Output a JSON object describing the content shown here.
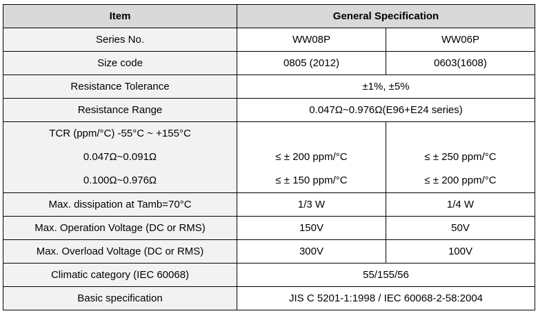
{
  "header": {
    "item": "Item",
    "general": "General Specification"
  },
  "rows": {
    "series_no": {
      "label": "Series No.",
      "a": "WW08P",
      "b": "WW06P"
    },
    "size_code": {
      "label": "Size code",
      "a": "0805 (2012)",
      "b": "0603(1608)"
    },
    "resistance_tolerance": {
      "label": "Resistance Tolerance",
      "value": "±1%, ±5%"
    },
    "resistance_range": {
      "label": "Resistance Range",
      "value": "0.047Ω~0.976Ω(E96+E24 series)"
    },
    "tcr": {
      "label": "TCR (ppm/°C) -55°C ~ +155°C",
      "range1": "0.047Ω~0.091Ω",
      "range2": "0.100Ω~0.976Ω",
      "a1": "≤ ± 200 ppm/°C",
      "a2": "≤ ± 150 ppm/°C",
      "b1": "≤ ± 250 ppm/°C",
      "b2": "≤ ± 200 ppm/°C"
    },
    "max_dissipation": {
      "label": "Max. dissipation at Tamb=70°C",
      "a": "1/3 W",
      "b": "1/4 W"
    },
    "max_operation_voltage": {
      "label": "Max. Operation Voltage (DC or RMS)",
      "a": "150V",
      "b": "50V"
    },
    "max_overload_voltage": {
      "label": "Max. Overload Voltage (DC or RMS)",
      "a": "300V",
      "b": "100V"
    },
    "climatic_category": {
      "label": "Climatic category (IEC 60068)",
      "value": "55/155/56"
    },
    "basic_specification": {
      "label": "Basic specification",
      "value": "JIS C 5201-1:1998 / IEC 60068-2-58:2004"
    }
  }
}
